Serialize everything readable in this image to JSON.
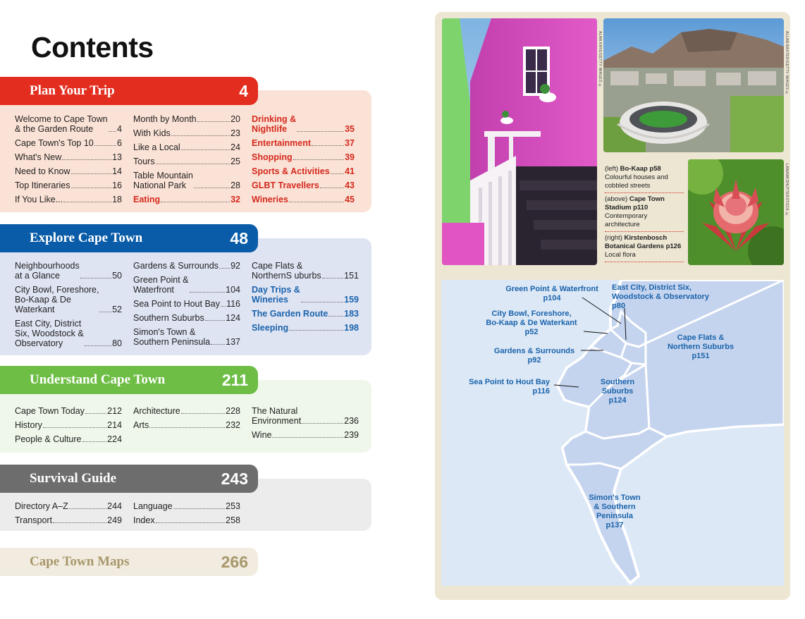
{
  "title": "Contents",
  "sections": [
    {
      "name": "Plan Your Trip",
      "page": "4",
      "columns": [
        [
          {
            "label": "Welcome to Cape Town\n& the Garden Route",
            "page": "4"
          },
          {
            "label": "Cape Town's Top 10",
            "page": "6"
          },
          {
            "label": "What's New",
            "page": "13"
          },
          {
            "label": "Need to Know",
            "page": "14"
          },
          {
            "label": "Top Itineraries",
            "page": "16"
          },
          {
            "label": "If You Like...",
            "page": "18"
          }
        ],
        [
          {
            "label": "Month by Month",
            "page": "20"
          },
          {
            "label": "With Kids",
            "page": "23"
          },
          {
            "label": "Like a Local",
            "page": "24"
          },
          {
            "label": "Tours",
            "page": "25"
          },
          {
            "label": "Table Mountain\nNational Park",
            "page": "28"
          },
          {
            "label": "Eating",
            "page": "32"
          }
        ],
        [
          {
            "label": "Drinking &\nNightlife",
            "page": "35"
          },
          {
            "label": "Entertainment",
            "page": "37"
          },
          {
            "label": "Shopping",
            "page": "39"
          },
          {
            "label": "Sports & Activities",
            "page": "41"
          },
          {
            "label": "GLBT Travellers",
            "page": "43"
          },
          {
            "label": "Wineries",
            "page": "45"
          }
        ]
      ]
    },
    {
      "name": "Explore Cape Town",
      "page": "48",
      "columns": [
        [
          {
            "label": "Neighbourhoods\nat a Glance",
            "page": "50"
          },
          {
            "label": "City Bowl, Foreshore,\nBo-Kaap & De\nWaterkant",
            "page": "52"
          },
          {
            "label": "East City, District\nSix, Woodstock &\nObservatory",
            "page": "80"
          }
        ],
        [
          {
            "label": "Gardens & Surrounds",
            "page": "92"
          },
          {
            "label": "Green Point &\nWaterfront",
            "page": "104"
          },
          {
            "label": "Sea Point to Hout Bay",
            "page": "116"
          },
          {
            "label": "Southern Suburbs",
            "page": "124"
          },
          {
            "label": "Simon's Town &\nSouthern Peninsula",
            "page": "137"
          }
        ],
        [
          {
            "label": "Cape Flats &\nNorthernS uburbs",
            "page": "151"
          },
          {
            "label": "Day Trips &\nWineries",
            "page": "159"
          },
          {
            "label": "The Garden Route",
            "page": "183"
          },
          {
            "label": "Sleeping",
            "page": "198"
          }
        ]
      ]
    },
    {
      "name": "Understand Cape Town",
      "page": "211",
      "columns": [
        [
          {
            "label": "Cape Town Today",
            "page": "212"
          },
          {
            "label": "History",
            "page": "214"
          },
          {
            "label": "People & Culture",
            "page": "224"
          }
        ],
        [
          {
            "label": "Architecture",
            "page": "228"
          },
          {
            "label": "Arts",
            "page": "232"
          }
        ],
        [
          {
            "label": "The Natural\nEnvironment",
            "page": "236"
          },
          {
            "label": "Wine",
            "page": "239"
          }
        ]
      ]
    },
    {
      "name": "Survival Guide",
      "page": "243",
      "columns": [
        [
          {
            "label": "Directory A–Z",
            "page": "244"
          },
          {
            "label": "Transport",
            "page": "249"
          }
        ],
        [
          {
            "label": "Language",
            "page": "253"
          },
          {
            "label": "Index",
            "page": "258"
          }
        ]
      ]
    },
    {
      "name": "Cape Town Maps",
      "page": "266"
    }
  ],
  "credits": {
    "photo1": "ALAN KAYE/GETTY IMAGES ©",
    "photo2": "ALLAN BAXTER/GETTY IMAGES ©",
    "photo3": "LANAWKSHUTTERSTOCK ©"
  },
  "captions": [
    {
      "prefix": "(left) ",
      "bold": "Bo-Kaap p58",
      "rest": "Colourful houses and cobbled streets"
    },
    {
      "prefix": "(above) ",
      "bold": "Cape Town Stadium p110",
      "rest": "Contem­porary architecture"
    },
    {
      "prefix": "(right) ",
      "bold": "Kirstenbosch Botanical Gardens p126",
      "rest": "Local flora"
    }
  ],
  "map_labels": {
    "green_point": "Green Point & Waterfront\np104",
    "east_city": "East City, District Six,\nWoodstock & Observatory\np80",
    "city_bowl": "City Bowl, Foreshore,\nBo-Kaap & De Waterkant\np52",
    "cape_flats": "Cape Flats &\nNorthern Suburbs\np151",
    "gardens": "Gardens & Surrounds\np92",
    "sea_point": "Sea Point to Hout Bay\np116",
    "southern": "Southern\nSuburbs\np124",
    "simons": "Simon's Town\n& Southern\nPeninsula\np137"
  },
  "colors": {
    "red": "#e32d1f",
    "blue": "#0a5ca8",
    "green": "#6ebd45",
    "grey": "#6d6d6d",
    "beige": "#f1ecdf",
    "map_sea": "#dce8f6",
    "map_land": "#c5d4ee"
  }
}
